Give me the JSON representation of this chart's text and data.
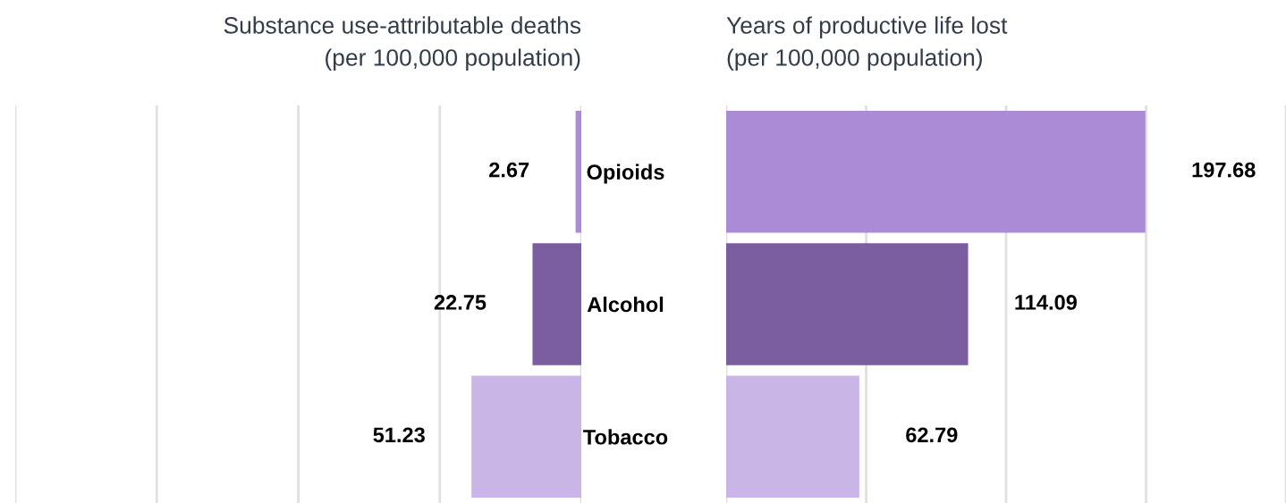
{
  "chart_data": [
    {
      "type": "bar",
      "orientation": "horizontal",
      "title": "Substance use-attributable deaths\n(per 100,000 population)",
      "values": [
        2.67,
        22.75,
        51.23
      ],
      "colors": [
        "#ab8bd6",
        "#7b5e9f",
        "#c9b6e6"
      ],
      "xlim": [
        264,
        0
      ],
      "xticks": [
        {
          "value": 0,
          "label": null
        },
        {
          "value": 66,
          "label": null
        },
        {
          "value": 132,
          "label": null
        },
        {
          "value": 198,
          "label": null
        },
        {
          "value": 264,
          "label": null
        }
      ],
      "grid": "x",
      "data_labels": true,
      "tick_labels": false
    },
    {
      "type": "bar",
      "orientation": "horizontal",
      "title": "Years of productive life lost\n(per 100,000 population)",
      "categories": [
        "Opioids",
        "Alcohol",
        "Tobacco"
      ],
      "values": [
        197.68,
        114.09,
        62.79
      ],
      "colors": [
        "#ab8bd6",
        "#7b5e9f",
        "#c9b6e6"
      ],
      "xlim": [
        0,
        264
      ],
      "xticks": [
        {
          "value": 0,
          "label": null
        },
        {
          "value": 66,
          "label": null
        },
        {
          "value": 132,
          "label": null
        },
        {
          "value": 198,
          "label": null
        },
        {
          "value": 264,
          "label": null
        }
      ],
      "grid": "x",
      "data_labels": true,
      "tick_labels": "y"
    }
  ]
}
